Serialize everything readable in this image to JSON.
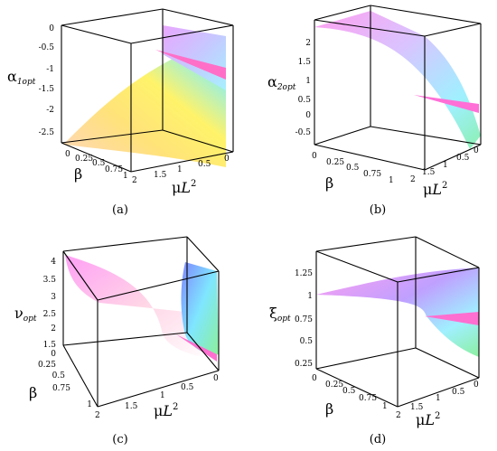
{
  "captions": [
    "(a)",
    "(b)",
    "(c)",
    "(d)"
  ],
  "panels": [
    {
      "id": "a",
      "z_label": "α",
      "z_sub": "1opt",
      "z_ticks": [
        "0",
        "-0.5",
        "-1",
        "-1.5",
        "-2",
        "-2.5"
      ],
      "beta_label": "β",
      "beta_ticks": [
        "0",
        "0.25",
        "0.5",
        "0.75",
        "1"
      ],
      "mu_label": "μ",
      "mu_L": "L",
      "mu_exp": "2",
      "mu_ticks": [
        "2",
        "1.5",
        "1",
        "0.5",
        "0"
      ]
    },
    {
      "id": "b",
      "z_label": "α",
      "z_sub": "2opt",
      "z_ticks": [
        "2",
        "1.5",
        "1",
        "0.5",
        "0",
        "-0.5"
      ],
      "beta_label": "β",
      "beta_ticks": [
        "0",
        "0.25",
        "0.5",
        "0.75",
        "1"
      ],
      "mu_label": "μ",
      "mu_L": "L",
      "mu_exp": "2",
      "mu_ticks": [
        "2",
        "1.5",
        "1",
        "0.5",
        "0"
      ]
    },
    {
      "id": "c",
      "z_label": "ν",
      "z_sub": "opt",
      "z_ticks": [
        "4",
        "3.5",
        "3",
        "2.5",
        "2",
        "1.5"
      ],
      "beta_label": "β",
      "beta_ticks": [
        "0",
        "0.25",
        "0.5",
        "0.75",
        "1"
      ],
      "mu_label": "μ",
      "mu_L": "L",
      "mu_exp": "2",
      "mu_ticks": [
        "2",
        "1.5",
        "1",
        "0.5",
        "0"
      ]
    },
    {
      "id": "d",
      "z_label": "ξ",
      "z_sub": "opt",
      "z_ticks": [
        "1.25",
        "1",
        "0.75",
        "0.5",
        "0.25"
      ],
      "beta_label": "β",
      "beta_ticks": [
        "0",
        "0.25",
        "0.5",
        "0.75",
        "1"
      ],
      "mu_label": "μ",
      "mu_L": "L",
      "mu_exp": "2",
      "mu_ticks": [
        "2",
        "1.5",
        "1",
        "0.5",
        "0"
      ]
    }
  ]
}
